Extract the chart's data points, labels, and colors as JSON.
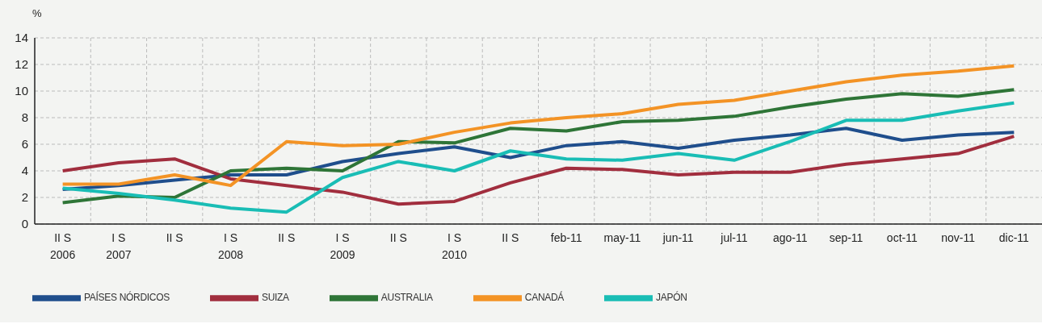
{
  "chart_data": {
    "type": "line",
    "ylabel": "%",
    "categories": [
      "II S\n2006",
      "I S\n2007",
      "II S",
      "I S\n2008",
      "II S",
      "I S\n2009",
      "II S",
      "I S\n2010",
      "II S",
      "feb-11",
      "may-11",
      "jun-11",
      "jul-11",
      "ago-11",
      "sep-11",
      "oct-11",
      "nov-11",
      "dic-11"
    ],
    "series": [
      {
        "name": "PAÍSES NÓRDICOS",
        "color": "#1f4e8c",
        "values": [
          2.6,
          2.9,
          3.3,
          3.7,
          3.7,
          4.7,
          5.3,
          5.8,
          5.0,
          5.9,
          6.2,
          5.7,
          6.3,
          6.7,
          7.2,
          6.3,
          6.7,
          6.9
        ]
      },
      {
        "name": "SUIZA",
        "color": "#a12e3e",
        "values": [
          4.0,
          4.6,
          4.9,
          3.4,
          2.9,
          2.4,
          1.5,
          1.7,
          3.1,
          4.2,
          4.1,
          3.7,
          3.9,
          3.9,
          4.5,
          4.9,
          5.3,
          6.6
        ]
      },
      {
        "name": "AUSTRALIA",
        "color": "#2e7537",
        "values": [
          1.6,
          2.1,
          2.0,
          4.0,
          4.2,
          4.0,
          6.2,
          6.1,
          7.2,
          7.0,
          7.7,
          7.8,
          8.1,
          8.8,
          9.4,
          9.8,
          9.6,
          10.1
        ]
      },
      {
        "name": "CANADÁ",
        "color": "#f39325",
        "values": [
          3.0,
          3.0,
          3.7,
          2.9,
          6.2,
          5.9,
          6.0,
          6.9,
          7.6,
          8.0,
          8.3,
          9.0,
          9.3,
          10.0,
          10.7,
          11.2,
          11.5,
          11.9
        ]
      },
      {
        "name": "JAPÓN",
        "color": "#19bdb5",
        "values": [
          2.7,
          2.3,
          1.8,
          1.2,
          0.9,
          3.5,
          4.7,
          4.0,
          5.5,
          4.9,
          4.8,
          5.3,
          4.8,
          6.2,
          7.8,
          7.8,
          8.5,
          9.1
        ]
      }
    ],
    "ylim": [
      0,
      14
    ],
    "yticks": [
      0,
      2,
      4,
      6,
      8,
      10,
      12,
      14
    ],
    "grid": true,
    "legend": "bottom left",
    "marker": "none",
    "line_style": "solid"
  }
}
